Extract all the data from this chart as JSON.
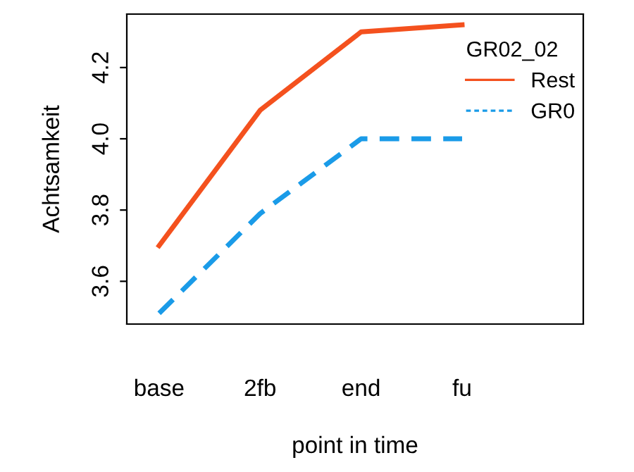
{
  "chart_data": {
    "type": "line",
    "xlabel": "point in time",
    "ylabel": "Achtsamkeit",
    "legend_title": "GR02_02",
    "categories": [
      "base",
      "2fb",
      "end",
      "fu"
    ],
    "series": [
      {
        "name": "Rest",
        "color": "#f4511e",
        "values": [
          3.7,
          4.08,
          4.3,
          4.32
        ],
        "line_style": "solid"
      },
      {
        "name": "GR0",
        "color": "#1a9be8",
        "values": [
          3.51,
          3.79,
          4.0,
          4.0
        ],
        "line_style": "dashed"
      }
    ],
    "ylim": [
      3.48,
      4.35
    ],
    "yticks": [
      {
        "value": 3.6,
        "label": "3.6"
      },
      {
        "value": 3.8,
        "label": "3.8"
      },
      {
        "value": 4.0,
        "label": "4.0"
      },
      {
        "value": 4.2,
        "label": "4.2"
      }
    ],
    "grid": false,
    "legend": "top right",
    "marker": "none"
  }
}
